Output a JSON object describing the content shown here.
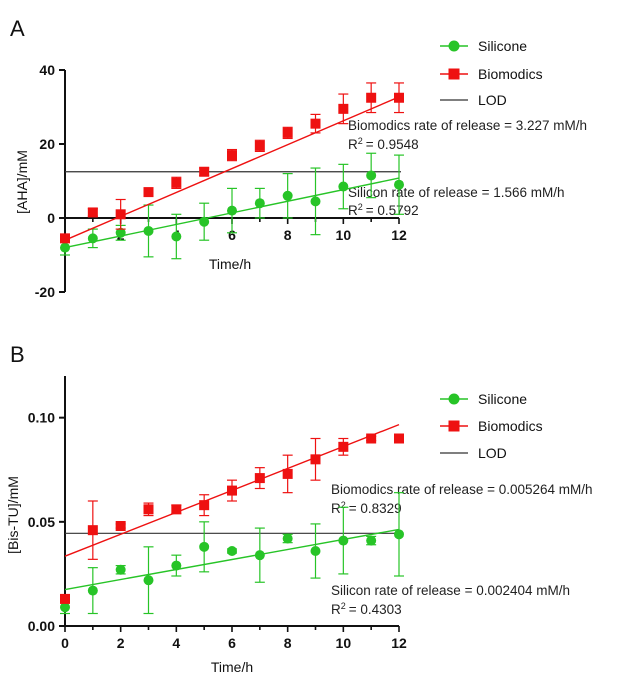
{
  "colors": {
    "silicone": "#27c427",
    "biomodics": "#ee1111",
    "lod": "#333333"
  },
  "chart_data": [
    {
      "panel": "A",
      "type": "scatter",
      "xlabel": "Time/h",
      "ylabel": "[AHA]/mM",
      "xlim": [
        0,
        12
      ],
      "ylim": [
        -20,
        40
      ],
      "xticks": [
        "2",
        "4",
        "6",
        "8",
        "10",
        "12"
      ],
      "yticks": [
        "40",
        "20",
        "0",
        "-20"
      ],
      "lod": 12.5,
      "legend": {
        "placement": "top-right",
        "items": [
          "Silicone",
          "Biomodics",
          "LOD"
        ]
      },
      "series": [
        {
          "name": "Silicone",
          "key": "silicone",
          "marker": "circle",
          "x": [
            0,
            1,
            2,
            3,
            4,
            5,
            6,
            7,
            8,
            9,
            10,
            11,
            12
          ],
          "y": [
            -8,
            -5.5,
            -4,
            -3.5,
            -5,
            -1,
            2,
            4,
            6,
            4.5,
            8.5,
            11.5,
            9
          ],
          "err": [
            2,
            2.5,
            2,
            7,
            6,
            5,
            6,
            4,
            6,
            9,
            6,
            6,
            8
          ],
          "fit": {
            "slope": 1.566,
            "intercept": -8.0
          }
        },
        {
          "name": "Biomodics",
          "key": "biomodics",
          "marker": "square",
          "x": [
            0,
            1,
            2,
            3,
            4,
            5,
            6,
            7,
            8,
            9,
            10,
            11,
            12
          ],
          "y": [
            -5.5,
            1.5,
            1,
            7,
            9.5,
            12.5,
            17,
            19.5,
            23,
            25.5,
            29.5,
            32.5,
            32.5
          ],
          "err": [
            1,
            1,
            4,
            1,
            1.5,
            1,
            1.5,
            1.5,
            1.5,
            2.5,
            4,
            4,
            4
          ],
          "fit": {
            "slope": 3.227,
            "intercept": -6.0
          }
        }
      ],
      "annotations": {
        "biomodics_rate": "Biomodics rate of release = 3.227 mM/h",
        "biomodics_r2": "= 0.9548",
        "silicon_rate": "Silicon rate of release = 1.566 mM/h",
        "silicon_r2": "= 0.5792"
      }
    },
    {
      "panel": "B",
      "type": "scatter",
      "xlabel": "Time/h",
      "ylabel": "[Bis-TU]/mM",
      "xlim": [
        0,
        12
      ],
      "ylim": [
        0,
        0.12
      ],
      "xticks": [
        "0",
        "2",
        "4",
        "6",
        "8",
        "10",
        "12"
      ],
      "yticks": [
        "0.10",
        "0.05",
        "0.00"
      ],
      "lod": 0.0445,
      "legend": {
        "placement": "top-right",
        "items": [
          "Silicone",
          "Biomodics",
          "LOD"
        ]
      },
      "series": [
        {
          "name": "Silicone",
          "key": "silicone",
          "marker": "circle",
          "x": [
            0,
            1,
            2,
            3,
            4,
            5,
            6,
            7,
            8,
            9,
            10,
            11,
            12
          ],
          "y": [
            0.009,
            0.017,
            0.027,
            0.022,
            0.029,
            0.038,
            0.036,
            0.034,
            0.042,
            0.036,
            0.041,
            0.041,
            0.044
          ],
          "err": [
            0.003,
            0.011,
            0.002,
            0.016,
            0.005,
            0.012,
            0.001,
            0.013,
            0.002,
            0.013,
            0.016,
            0.002,
            0.02
          ],
          "fit": {
            "slope": 0.002404,
            "intercept": 0.0175
          }
        },
        {
          "name": "Biomodics",
          "key": "biomodics",
          "marker": "square",
          "x": [
            0,
            1,
            2,
            3,
            4,
            5,
            6,
            7,
            8,
            9,
            10,
            11,
            12
          ],
          "y": [
            0.013,
            0.046,
            0.048,
            0.056,
            0.056,
            0.058,
            0.065,
            0.071,
            0.073,
            0.08,
            0.086,
            0.09,
            0.09
          ],
          "err": [
            0.001,
            0.014,
            0.001,
            0.003,
            0.002,
            0.005,
            0.005,
            0.005,
            0.009,
            0.01,
            0.004,
            0.001,
            0.001
          ],
          "fit": {
            "slope": 0.005264,
            "intercept": 0.0335
          }
        }
      ],
      "annotations": {
        "biomodics_rate": "Biomodics rate of release = 0.005264 mM/h",
        "biomodics_r2": "= 0.8329",
        "silicon_rate": "Silicon rate of release = 0.002404 mM/h",
        "silicon_r2": "= 0.4303"
      }
    }
  ]
}
